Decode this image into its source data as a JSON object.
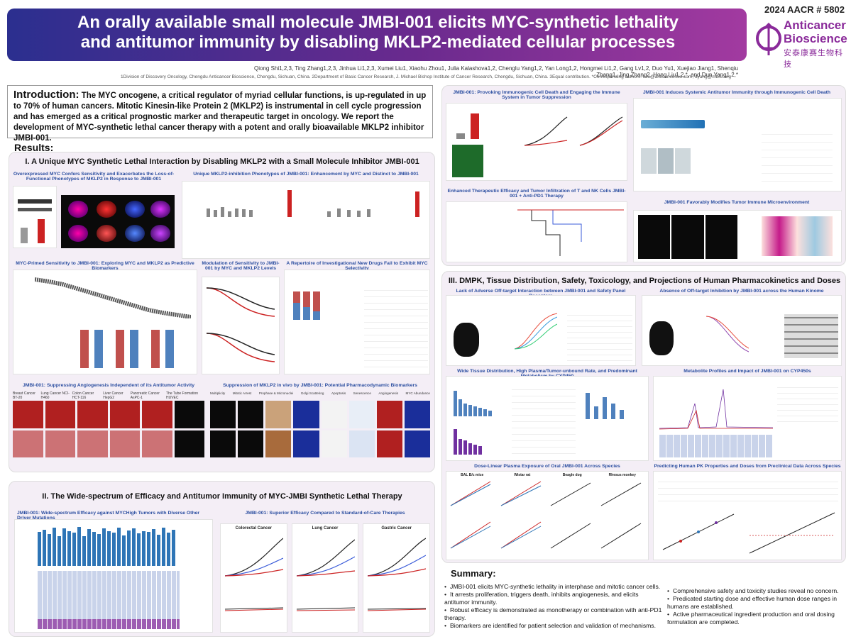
{
  "header": {
    "title_line1": "An orally available small molecule JMBI-001 elicits MYC-synthetic lethality",
    "title_line2": "and antitumor immunity by disabling MKLP2-mediated cellular processes",
    "abstract_number": "2024 AACR # 5802",
    "logo_name_line1": "Anticancer",
    "logo_name_line2": "Bioscience",
    "logo_chinese": "安泰康赛生物科技",
    "authors": "Qiong Shi1,2,3, Ting Zhang1,2,3, Jinhua Li1,2,3, Xumei Liu1, Xiaohu Zhou1, Julia Kalashova1,2, Chenglu Yang1,2, Yan Long1,2, Hongmei Li1,2, Gang Lv1,2, Duo Yu1, Xuejiao Jiang1, Shenqiu Zhang1, Jing Zhang2, Hong Liu1,2,*, and Dun Yang1,2,*",
    "affiliations": "1Division of Discovery Oncology, Chengdu Anticancer Bioscience, Chengdu, Sichuan, China. 2Department of Basic Cancer Research, J. Michael Bishop Institute of Cancer Research, Chengdu, Sichuan, China. 3Equal contribution. *Corresponding authors: hliu@anticancerbio.com, dyang@mbicr.org"
  },
  "intro": {
    "label": "Introduction:",
    "text": "The MYC oncogene, a critical regulator of myriad cellular functions, is up-regulated in up to 70% of human cancers. Mitotic Kinesin-like Protein 2 (MKLP2) is instrumental in cell cycle progression and has emerged as a critical prognostic marker and therapeutic target in oncology. We report the development of MYC-synthetic lethal cancer therapy with a potent and orally bioavailable MKLP2 inhibitor JMBI-001."
  },
  "results_label": "Results:",
  "section1": {
    "title": "I. A Unique MYC Synthetic Lethal Interaction by Disabling MKLP2 with a Small Molecule Inhibitor JMBI-001",
    "panels": [
      "Overexpressed MYC Confers Sensitivity and Exacerbates the Loss-of-Functional Phenotypes of MKLP2 in Response to JMBI-001",
      "Unique MKLP2-inhibition Phenotypes of JMBI-001: Enhancement by MYC and Distinct to JMBI-001",
      "MYC-Primed Sensitivity to JMBI-001: Exploring MYC and MKLP2 as Predictive Biomarkers",
      "Modulation of Sensitivity to JMBI-001 by MYC and MKLP2 Levels",
      "A Repertoire of Investigational New Drugs Fail to Exhibit MYC Selectivity",
      "JMBI-001: Suppressing Angiogenesis Independent of its Antitumor Activity",
      "Suppression of MKLP2 in vivo by JMBI-001: Potential Pharmacodynamic Biomarkers"
    ],
    "cell_lines": [
      "Breast Cancer BT-20",
      "Lung Cancer NCI-H460",
      "Colon Cancer HCT-116",
      "Liver Cancer HepG2",
      "Pancreatic Cancer AsPC-1",
      "The Tube Formation HUVEC"
    ],
    "pd_markers": [
      "Multiplicity",
      "Mitotic Arrest",
      "Prophase & Micronuclei",
      "Golgi Scattering",
      "Apoptosis",
      "Senescence",
      "Angiogenesis",
      "MYC Abundance"
    ]
  },
  "section2": {
    "title": "II. The Wide-spectrum of Efficacy and Antitumor Immunity of MYC-JMBI Synthetic Lethal Therapy",
    "panels": [
      "JMBI-001: Wide-spectrum Efficacy against MYCHigh Tumors with Diverse Other Driver Mutations",
      "JMBI-001: Superior Efficacy Compared to Standard-of-Care Therapies"
    ],
    "models": [
      "Colorectal Cancer",
      "Lung Cancer",
      "Gastric Cancer"
    ]
  },
  "immunity": {
    "panels": [
      "JMBI-001: Provoking Immunogenic Cell Death and Engaging the Immune System in Tumor Suppression",
      "JMBI-001 Induces Systemic Antitumor Immunity through Immunogenic Cell Death",
      "Enhanced Therapeutic Efficacy and Tumor Infiltration of T and NK Cells JMBI-001 + Anti-PD1 Therapy",
      "JMBI-001 Favorably Modifies Tumor Immune Microenvironment"
    ]
  },
  "section3": {
    "title": "III. DMPK, Tissue Distribution, Safety, Toxicology, and Projections of Human Pharmacokinetics and Doses",
    "panels": [
      "Lack of Adverse Off-target Interaction between JMBI-001 and Safety Panel Receptors",
      "Absence of Off-target Inhibition by JMBI-001 across the Human Kinome",
      "Wide Tissue Distribution, High Plasma/Tumor-unbound Rate, and Predominant Metabolism by CYP450",
      "Metabolite Profiles and Impact of JMBI-001 on CYP450s",
      "Dose-Linear Plasma Exposure of Oral JMBI-001 Across Species",
      "Predicting Human PK Properties and Doses from Preclinical Data Across Species"
    ],
    "species": [
      "BAL B/c mice",
      "Wistar rat",
      "Beagle dog",
      "Rhesus monkey"
    ]
  },
  "summary": {
    "title": "Summary:",
    "left": [
      "JMBI-001 elicits MYC-synthetic lethality in interphase and mitotic cancer cells.",
      "It arrests proliferation, triggers death, inhibits angiogenesis, and elicits antitumor immunity.",
      "Robust efficacy is demonstrated as monotherapy or combination with anti-PD1 therapy.",
      "Biomarkers are identified for patient selection and validation of mechanisms."
    ],
    "right": [
      "Comprehensive safety and toxicity studies reveal no concern.",
      "Predicated starting dose and effective human dose ranges in humans are established.",
      "Active pharmaceutical ingredient production and oral dosing formulation are completed."
    ]
  },
  "colors": {
    "title_gradient_start": "#2b2f8f",
    "title_gradient_end": "#a23aa0",
    "brand": "#8a2a9a",
    "panel_bg": "#f4eef6",
    "subheading": "#2b4ea0"
  }
}
